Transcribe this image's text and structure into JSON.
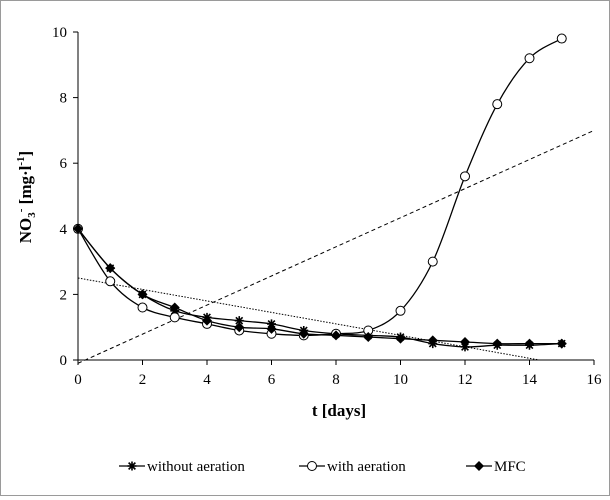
{
  "chart_data": {
    "type": "line",
    "title": "",
    "xlabel": "t [days]",
    "ylabel_main": "NO",
    "ylabel_sub": "3",
    "ylabel_sup": "-",
    "ylabel_unit": " [mg·l",
    "ylabel_unit_sup": "-1",
    "ylabel_close": "]",
    "xlim": [
      0,
      16
    ],
    "ylim": [
      0,
      10
    ],
    "xticks": [
      0,
      2,
      4,
      6,
      8,
      10,
      12,
      14,
      16
    ],
    "yticks": [
      0,
      2,
      4,
      6,
      8,
      10
    ],
    "grid": false,
    "legend_position": "bottom",
    "series": [
      {
        "name": "without aeration",
        "marker": "asterisk",
        "x": [
          0,
          1,
          2,
          3,
          4,
          5,
          6,
          7,
          8,
          9,
          10,
          11,
          12,
          13,
          14,
          15
        ],
        "y": [
          4.0,
          2.8,
          2.0,
          1.5,
          1.3,
          1.2,
          1.1,
          0.9,
          0.8,
          0.75,
          0.7,
          0.5,
          0.4,
          0.45,
          0.45,
          0.5
        ]
      },
      {
        "name": "with aeration",
        "marker": "open-circle",
        "x": [
          0,
          1,
          2,
          3,
          4,
          5,
          6,
          7,
          8,
          9,
          10,
          11,
          12,
          13,
          14,
          15
        ],
        "y": [
          4.0,
          2.4,
          1.6,
          1.3,
          1.1,
          0.9,
          0.8,
          0.75,
          0.8,
          0.9,
          1.5,
          3.0,
          5.6,
          7.8,
          9.2,
          9.8
        ]
      },
      {
        "name": "MFC",
        "marker": "filled-diamond",
        "x": [
          0,
          1,
          2,
          3,
          4,
          5,
          6,
          7,
          8,
          9,
          10,
          11,
          12,
          13,
          14,
          15
        ],
        "y": [
          4.0,
          2.8,
          2.0,
          1.6,
          1.2,
          1.0,
          0.95,
          0.8,
          0.75,
          0.7,
          0.65,
          0.6,
          0.55,
          0.5,
          0.5,
          0.5
        ]
      }
    ],
    "trendlines": [
      {
        "style": "dashed",
        "x": [
          0,
          16
        ],
        "y": [
          -0.1,
          7.0
        ]
      },
      {
        "style": "dotted",
        "x": [
          0,
          14.3
        ],
        "y": [
          2.5,
          0.0
        ]
      }
    ]
  },
  "colors": {
    "line": "#000000",
    "frame": "#9a9a9a",
    "background": "#ffffff"
  }
}
